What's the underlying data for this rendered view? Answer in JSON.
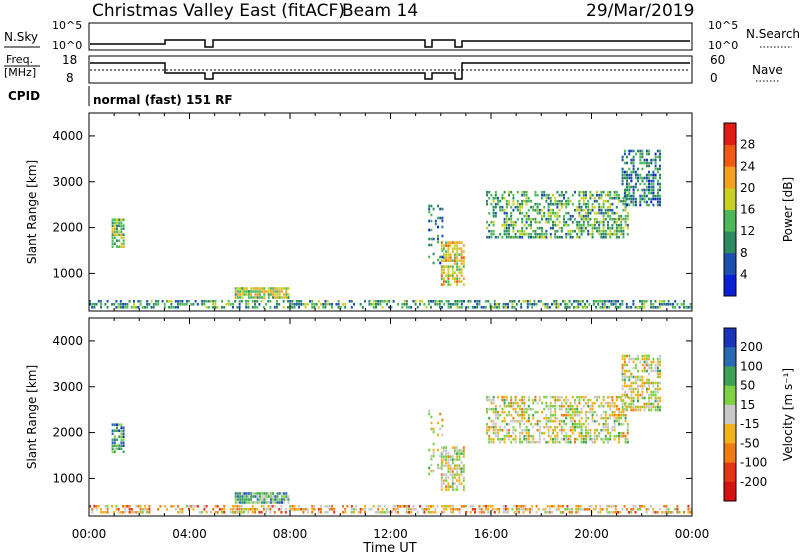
{
  "header": {
    "title": "Christmas Valley East (fitACF)",
    "beam": "Beam 14",
    "date": "29/Mar/2019"
  },
  "top_panels": {
    "nsky_label": "N.Sky",
    "nsky_ticks": [
      "10^5",
      "10^0"
    ],
    "nsearch_label": "N.Search",
    "nsearch_ticks": [
      "10^5",
      "10^0"
    ],
    "freq_label": "Freq.",
    "freq_unit": "[MHz]",
    "freq_ticks": [
      "18",
      "8"
    ],
    "nave_label": "Nave",
    "nave_ticks": [
      "60",
      "0"
    ],
    "cpid_label": "CPID",
    "cpid_text": "normal (fast) 151 RF"
  },
  "chart_data": [
    {
      "type": "heatmap",
      "name": "power-panel",
      "ylabel": "Slant Range [km]",
      "ylim": [
        180,
        4500
      ],
      "yticks": [
        1000,
        2000,
        3000,
        4000
      ],
      "xlim": [
        0,
        24
      ],
      "colorbar_label": "Power [dB]",
      "colorbar_range": [
        0,
        32
      ],
      "colorbar_ticks": [
        "4",
        "8",
        "12",
        "16",
        "20",
        "24",
        "28"
      ],
      "colorbar_colors": [
        "#0a1fd6",
        "#1e4fb0",
        "#2c8a5f",
        "#4db85a",
        "#c8d025",
        "#f2a21e",
        "#ef5a14",
        "#e31b14"
      ],
      "features": [
        {
          "t0": 0.0,
          "t1": 24.0,
          "r0": 200,
          "r1": 420,
          "level": 0.35,
          "density": 0.55
        },
        {
          "t0": 0.9,
          "t1": 1.5,
          "r0": 1500,
          "r1": 2200,
          "level": 0.45,
          "density": 0.8
        },
        {
          "t0": 5.8,
          "t1": 8.0,
          "r0": 380,
          "r1": 700,
          "level": 0.55,
          "density": 0.9
        },
        {
          "t0": 14.0,
          "t1": 15.0,
          "r0": 700,
          "r1": 1700,
          "level": 0.6,
          "density": 0.7
        },
        {
          "t0": 13.5,
          "t1": 14.2,
          "r0": 1000,
          "r1": 2500,
          "level": 0.3,
          "density": 0.25
        },
        {
          "t0": 15.8,
          "t1": 21.5,
          "r0": 1700,
          "r1": 2800,
          "level": 0.4,
          "density": 0.55
        },
        {
          "t0": 21.2,
          "t1": 22.8,
          "r0": 2400,
          "r1": 3700,
          "level": 0.3,
          "density": 0.6
        }
      ]
    },
    {
      "type": "heatmap",
      "name": "velocity-panel",
      "ylabel": "Slant Range [km]",
      "ylim": [
        180,
        4500
      ],
      "yticks": [
        1000,
        2000,
        3000,
        4000
      ],
      "xlim": [
        0,
        24
      ],
      "xticks": [
        "00:00",
        "04:00",
        "08:00",
        "12:00",
        "16:00",
        "20:00",
        "00:00"
      ],
      "xlabel": "Time UT",
      "colorbar_label": "Velocity [m s⁻¹]",
      "colorbar_ticks": [
        "200",
        "100",
        "50",
        "15",
        "-15",
        "-50",
        "-100",
        "-200"
      ],
      "colorbar_colors": [
        "#1835b8",
        "#2a6ab5",
        "#3fa057",
        "#7ed045",
        "#c8c8c8",
        "#f2b21e",
        "#f07a12",
        "#e63312",
        "#d81010"
      ],
      "features": [
        {
          "t0": 0.0,
          "t1": 24.0,
          "r0": 200,
          "r1": 420,
          "level": 0.62,
          "density": 0.55
        },
        {
          "t0": 0.9,
          "t1": 1.5,
          "r0": 1500,
          "r1": 2200,
          "level": 0.25,
          "density": 0.8
        },
        {
          "t0": 5.8,
          "t1": 8.0,
          "r0": 380,
          "r1": 700,
          "level": 0.3,
          "density": 0.9
        },
        {
          "t0": 14.0,
          "t1": 15.0,
          "r0": 700,
          "r1": 1700,
          "level": 0.5,
          "density": 0.7
        },
        {
          "t0": 13.5,
          "t1": 14.2,
          "r0": 1000,
          "r1": 2500,
          "level": 0.5,
          "density": 0.25
        },
        {
          "t0": 15.8,
          "t1": 21.5,
          "r0": 1700,
          "r1": 2800,
          "level": 0.5,
          "density": 0.55
        },
        {
          "t0": 21.2,
          "t1": 22.8,
          "r0": 2400,
          "r1": 3700,
          "level": 0.5,
          "density": 0.6
        }
      ]
    }
  ]
}
